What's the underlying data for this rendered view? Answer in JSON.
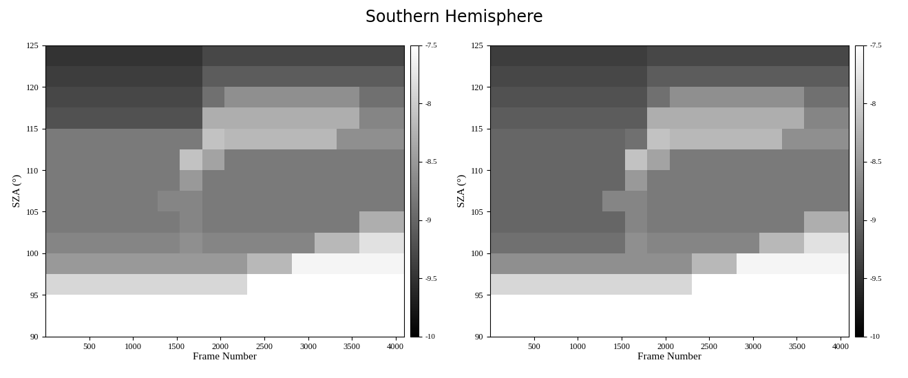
{
  "title": "Southern Hemisphere",
  "chart_data": [
    {
      "type": "heatmap",
      "xlabel": "Frame Number",
      "ylabel": "SZA (°)",
      "color": "gray",
      "xlim": [
        0,
        4096
      ],
      "ylim": [
        90,
        125
      ],
      "xticks": [
        500,
        1000,
        1500,
        2000,
        2500,
        3000,
        3500,
        4000
      ],
      "yticks": [
        90,
        95,
        100,
        105,
        110,
        115,
        120,
        125
      ],
      "x_edges": [
        0,
        256,
        512,
        768,
        1024,
        1280,
        1536,
        1792,
        2048,
        2304,
        2560,
        2816,
        3072,
        3328,
        3584,
        3840,
        4096
      ],
      "y_edges": [
        90,
        92.5,
        95,
        97.5,
        100,
        102.5,
        105,
        107.5,
        110,
        112.5,
        115,
        117.5,
        120,
        122.5,
        125
      ],
      "cells": [
        [
          -7.5,
          -7.5,
          -7.5,
          -7.5,
          -7.5,
          -7.5,
          -7.5,
          -7.5,
          -7.5,
          -7.5,
          -7.5,
          -7.5,
          -7.5,
          -7.5,
          -7.5,
          -7.5
        ],
        [
          -7.5,
          -7.5,
          -7.5,
          -7.5,
          -7.5,
          -7.5,
          -7.5,
          -7.5,
          -7.5,
          -7.5,
          -7.5,
          -7.5,
          -7.5,
          -7.5,
          -7.5,
          -7.5
        ],
        [
          -7.9,
          -7.9,
          -7.9,
          -7.9,
          -7.9,
          -7.9,
          -7.9,
          -7.9,
          -7.9,
          -7.5,
          -7.5,
          -7.5,
          -7.5,
          -7.5,
          -7.5,
          -7.5
        ],
        [
          -8.5,
          -8.5,
          -8.5,
          -8.5,
          -8.5,
          -8.5,
          -8.5,
          -8.5,
          -8.5,
          -8.2,
          -8.2,
          -7.6,
          -7.6,
          -7.6,
          -7.6,
          -7.6
        ],
        [
          -8.7,
          -8.7,
          -8.7,
          -8.7,
          -8.7,
          -8.7,
          -8.6,
          -8.7,
          -8.7,
          -8.7,
          -8.7,
          -8.7,
          -8.2,
          -8.2,
          -7.8,
          -7.8
        ],
        [
          -8.8,
          -8.8,
          -8.8,
          -8.8,
          -8.8,
          -8.8,
          -8.7,
          -8.8,
          -8.8,
          -8.8,
          -8.8,
          -8.8,
          -8.8,
          -8.8,
          -8.3,
          -8.3
        ],
        [
          -8.8,
          -8.8,
          -8.8,
          -8.8,
          -8.8,
          -8.7,
          -8.7,
          -8.8,
          -8.8,
          -8.8,
          -8.8,
          -8.8,
          -8.8,
          -8.8,
          -8.8,
          -8.8
        ],
        [
          -8.8,
          -8.8,
          -8.8,
          -8.8,
          -8.8,
          -8.8,
          -8.5,
          -8.8,
          -8.8,
          -8.8,
          -8.8,
          -8.8,
          -8.8,
          -8.8,
          -8.8,
          -8.8
        ],
        [
          -8.8,
          -8.8,
          -8.8,
          -8.8,
          -8.8,
          -8.8,
          -8.1,
          -8.4,
          -8.8,
          -8.8,
          -8.8,
          -8.8,
          -8.8,
          -8.8,
          -8.8,
          -8.8
        ],
        [
          -8.8,
          -8.8,
          -8.8,
          -8.8,
          -8.8,
          -8.8,
          -8.8,
          -8.1,
          -8.2,
          -8.2,
          -8.2,
          -8.2,
          -8.2,
          -8.6,
          -8.6,
          -8.6
        ],
        [
          -9.2,
          -9.2,
          -9.2,
          -9.2,
          -9.2,
          -9.2,
          -9.2,
          -8.3,
          -8.3,
          -8.3,
          -8.3,
          -8.3,
          -8.3,
          -8.3,
          -8.7,
          -8.7
        ],
        [
          -9.3,
          -9.3,
          -9.3,
          -9.3,
          -9.3,
          -9.3,
          -9.3,
          -8.9,
          -8.6,
          -8.6,
          -8.6,
          -8.6,
          -8.6,
          -8.6,
          -8.9,
          -8.9
        ],
        [
          -9.4,
          -9.4,
          -9.4,
          -9.4,
          -9.4,
          -9.4,
          -9.4,
          -9.1,
          -9.1,
          -9.1,
          -9.1,
          -9.1,
          -9.1,
          -9.1,
          -9.1,
          -9.1
        ],
        [
          -9.5,
          -9.5,
          -9.5,
          -9.5,
          -9.5,
          -9.5,
          -9.5,
          -9.3,
          -9.3,
          -9.3,
          -9.3,
          -9.3,
          -9.3,
          -9.3,
          -9.3,
          -9.3
        ]
      ],
      "colorbar_range": [
        -10,
        -7.5
      ],
      "colorbar_ticks": [
        -7.5,
        -8,
        -8.5,
        -9,
        -9.5,
        -10
      ]
    },
    {
      "type": "heatmap",
      "xlabel": "Frame Number",
      "ylabel": "SZA (°)",
      "color": "gray",
      "xlim": [
        0,
        4096
      ],
      "ylim": [
        90,
        125
      ],
      "xticks": [
        500,
        1000,
        1500,
        2000,
        2500,
        3000,
        3500,
        4000
      ],
      "yticks": [
        90,
        95,
        100,
        105,
        110,
        115,
        120,
        125
      ],
      "x_edges": [
        0,
        256,
        512,
        768,
        1024,
        1280,
        1536,
        1792,
        2048,
        2304,
        2560,
        2816,
        3072,
        3328,
        3584,
        3840,
        4096
      ],
      "y_edges": [
        90,
        92.5,
        95,
        97.5,
        100,
        102.5,
        105,
        107.5,
        110,
        112.5,
        115,
        117.5,
        120,
        122.5,
        125
      ],
      "cells": [
        [
          -7.5,
          -7.5,
          -7.5,
          -7.5,
          -7.5,
          -7.5,
          -7.5,
          -7.5,
          -7.5,
          -7.5,
          -7.5,
          -7.5,
          -7.5,
          -7.5,
          -7.5,
          -7.5
        ],
        [
          -7.5,
          -7.5,
          -7.5,
          -7.5,
          -7.5,
          -7.5,
          -7.5,
          -7.5,
          -7.5,
          -7.5,
          -7.5,
          -7.5,
          -7.5,
          -7.5,
          -7.5,
          -7.5
        ],
        [
          -7.9,
          -7.9,
          -7.9,
          -7.9,
          -7.9,
          -7.9,
          -7.9,
          -7.9,
          -7.9,
          -7.5,
          -7.5,
          -7.5,
          -7.5,
          -7.5,
          -7.5,
          -7.5
        ],
        [
          -8.6,
          -8.6,
          -8.6,
          -8.6,
          -8.6,
          -8.6,
          -8.6,
          -8.6,
          -8.6,
          -8.2,
          -8.2,
          -7.6,
          -7.6,
          -7.6,
          -7.6,
          -7.6
        ],
        [
          -8.9,
          -8.9,
          -8.9,
          -8.9,
          -8.9,
          -8.9,
          -8.6,
          -8.7,
          -8.7,
          -8.7,
          -8.7,
          -8.7,
          -8.2,
          -8.2,
          -7.8,
          -7.8
        ],
        [
          -9.0,
          -9.0,
          -9.0,
          -9.0,
          -9.0,
          -9.0,
          -8.7,
          -8.8,
          -8.8,
          -8.8,
          -8.8,
          -8.8,
          -8.8,
          -8.8,
          -8.3,
          -8.3
        ],
        [
          -9.0,
          -9.0,
          -9.0,
          -9.0,
          -9.0,
          -8.7,
          -8.7,
          -8.8,
          -8.8,
          -8.8,
          -8.8,
          -8.8,
          -8.8,
          -8.8,
          -8.8,
          -8.8
        ],
        [
          -9.0,
          -9.0,
          -9.0,
          -9.0,
          -9.0,
          -9.0,
          -8.5,
          -8.8,
          -8.8,
          -8.8,
          -8.8,
          -8.8,
          -8.8,
          -8.8,
          -8.8,
          -8.8
        ],
        [
          -9.0,
          -9.0,
          -9.0,
          -9.0,
          -9.0,
          -9.0,
          -8.1,
          -8.4,
          -8.8,
          -8.8,
          -8.8,
          -8.8,
          -8.8,
          -8.8,
          -8.8,
          -8.8
        ],
        [
          -9.0,
          -9.0,
          -9.0,
          -9.0,
          -9.0,
          -9.0,
          -8.9,
          -8.1,
          -8.2,
          -8.2,
          -8.2,
          -8.2,
          -8.2,
          -8.6,
          -8.6,
          -8.6
        ],
        [
          -9.1,
          -9.1,
          -9.1,
          -9.1,
          -9.1,
          -9.1,
          -9.1,
          -8.3,
          -8.3,
          -8.3,
          -8.3,
          -8.3,
          -8.3,
          -8.3,
          -8.7,
          -8.7
        ],
        [
          -9.2,
          -9.2,
          -9.2,
          -9.2,
          -9.2,
          -9.2,
          -9.2,
          -8.9,
          -8.6,
          -8.6,
          -8.6,
          -8.6,
          -8.6,
          -8.6,
          -8.9,
          -8.9
        ],
        [
          -9.3,
          -9.3,
          -9.3,
          -9.3,
          -9.3,
          -9.3,
          -9.3,
          -9.1,
          -9.1,
          -9.1,
          -9.1,
          -9.1,
          -9.1,
          -9.1,
          -9.1,
          -9.1
        ],
        [
          -9.4,
          -9.4,
          -9.4,
          -9.4,
          -9.4,
          -9.4,
          -9.4,
          -9.3,
          -9.3,
          -9.3,
          -9.3,
          -9.3,
          -9.3,
          -9.3,
          -9.3,
          -9.3
        ]
      ],
      "colorbar_range": [
        -10,
        -7.5
      ],
      "colorbar_ticks": [
        -7.5,
        -8,
        -8.5,
        -9,
        -9.5,
        -10
      ]
    }
  ]
}
